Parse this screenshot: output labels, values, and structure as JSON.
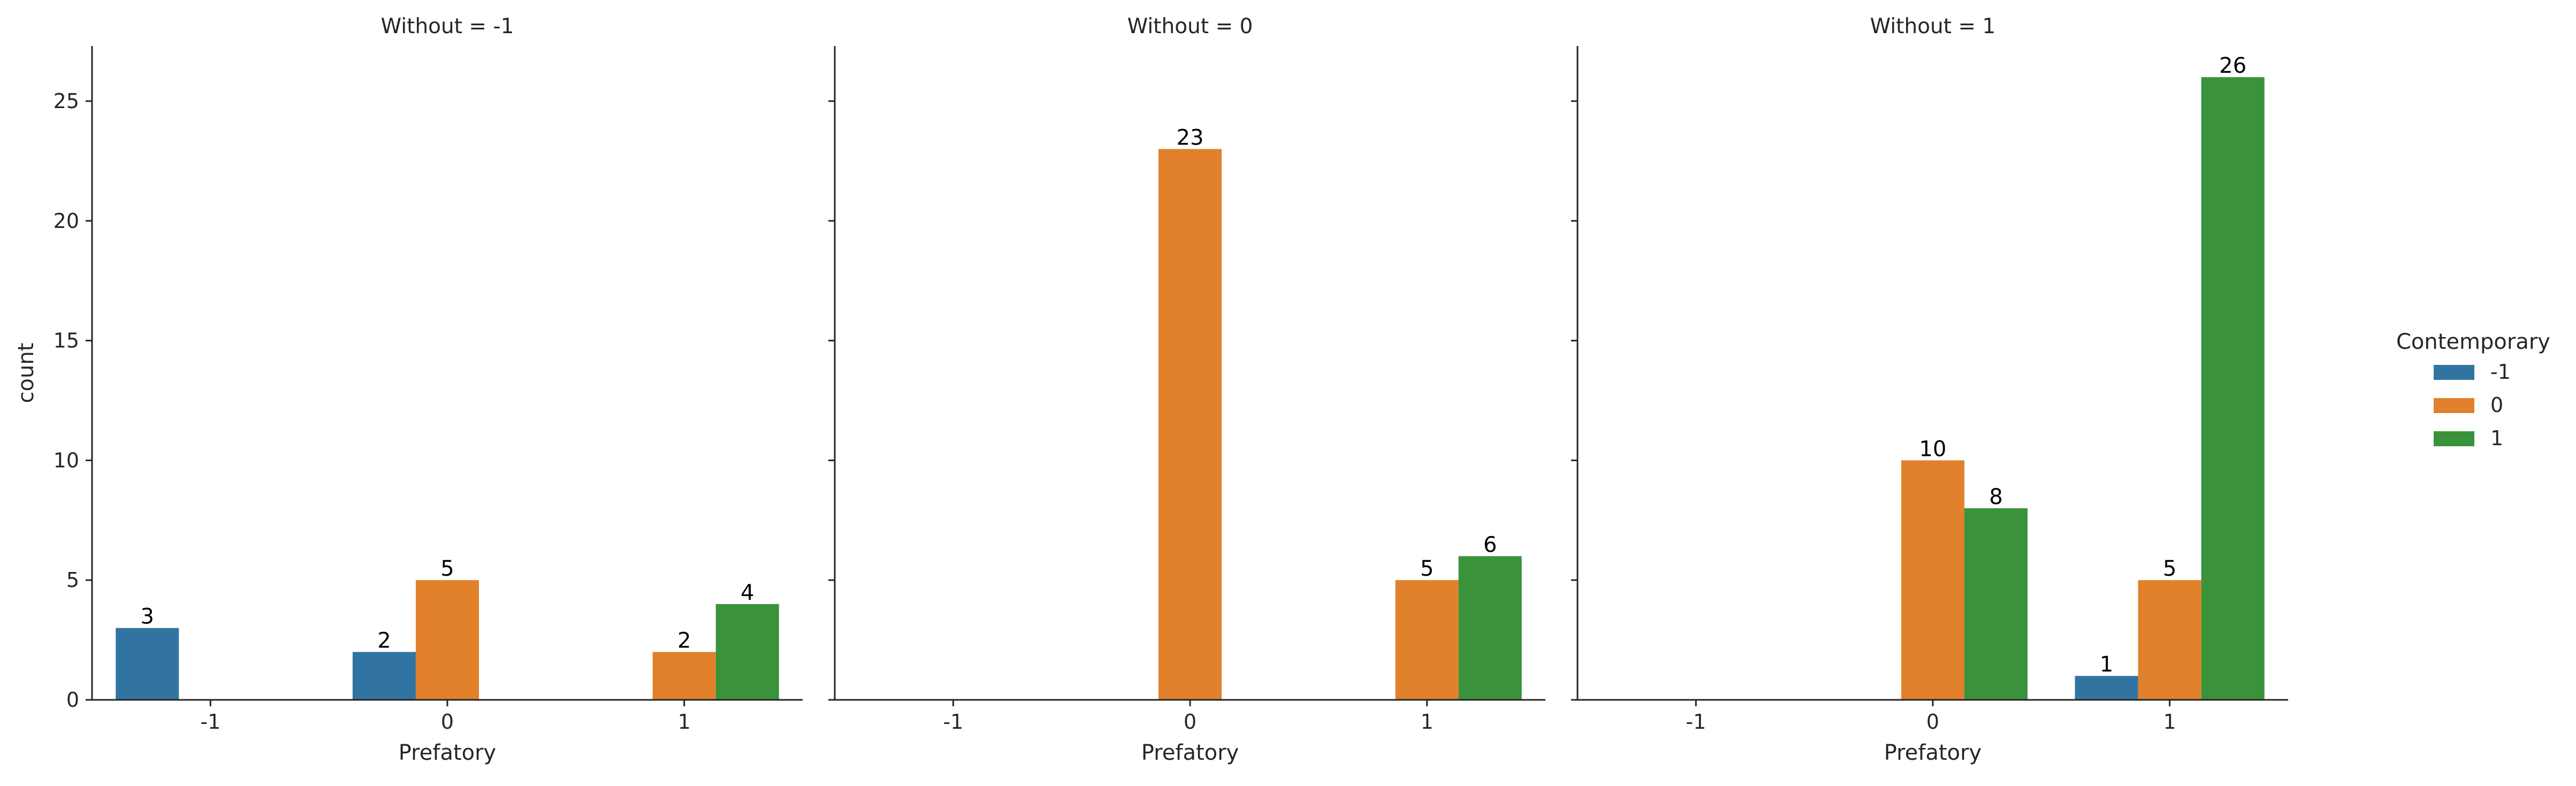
{
  "chart_data": {
    "type": "bar",
    "facet_variable": "Without",
    "hue_variable": "Contemporary",
    "xlabel": "Prefatory",
    "ylabel": "count",
    "categories": [
      "-1",
      "0",
      "1"
    ],
    "hue_levels": [
      "-1",
      "0",
      "1"
    ],
    "colors": [
      "#3274a1",
      "#e1812c",
      "#3a923a"
    ],
    "ylim": [
      0,
      27.3
    ],
    "yticks": [
      0,
      5,
      10,
      15,
      20,
      25
    ],
    "legend": {
      "title": "Contemporary",
      "placement": "right",
      "entries": [
        "-1",
        "0",
        "1"
      ]
    },
    "grid": false,
    "facets": [
      {
        "title": "Without = -1",
        "series": [
          {
            "name": "-1",
            "values": [
              3,
              2,
              null
            ]
          },
          {
            "name": "0",
            "values": [
              null,
              5,
              2
            ]
          },
          {
            "name": "1",
            "values": [
              null,
              null,
              4
            ]
          }
        ]
      },
      {
        "title": "Without = 0",
        "series": [
          {
            "name": "-1",
            "values": [
              null,
              null,
              null
            ]
          },
          {
            "name": "0",
            "values": [
              null,
              23,
              5
            ]
          },
          {
            "name": "1",
            "values": [
              null,
              null,
              6
            ]
          }
        ]
      },
      {
        "title": "Without = 1",
        "series": [
          {
            "name": "-1",
            "values": [
              null,
              null,
              1
            ]
          },
          {
            "name": "0",
            "values": [
              null,
              10,
              5
            ]
          },
          {
            "name": "1",
            "values": [
              null,
              8,
              26
            ]
          }
        ]
      }
    ]
  }
}
